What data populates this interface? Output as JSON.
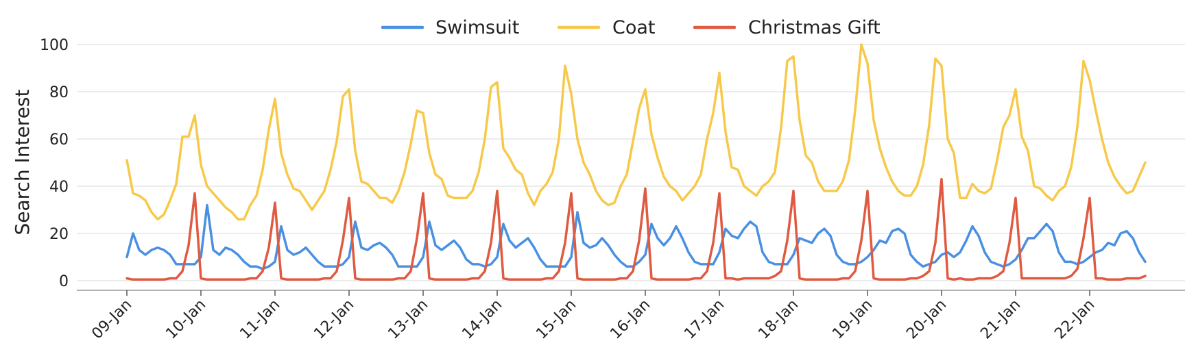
{
  "chart_data": {
    "type": "line",
    "title": "",
    "xlabel": "",
    "ylabel": "Search Interest",
    "ylim": [
      0,
      100
    ],
    "y_ticks": [
      0,
      20,
      40,
      60,
      80,
      100
    ],
    "x_tick_labels": [
      "09-Jan",
      "10-Jan",
      "11-Jan",
      "12-Jan",
      "13-Jan",
      "14-Jan",
      "15-Jan",
      "16-Jan",
      "17-Jan",
      "18-Jan",
      "19-Jan",
      "20-Jan",
      "21-Jan",
      "22-Jan"
    ],
    "points_per_day": 12,
    "grid": "horizontal",
    "legend_position": "top-center",
    "series": [
      {
        "name": "Swimsuit",
        "color": "#4a90e2",
        "values": [
          10,
          20,
          13,
          11,
          13,
          14,
          13,
          11,
          7,
          7,
          7,
          7,
          10,
          32,
          13,
          11,
          14,
          13,
          11,
          8,
          6,
          6,
          5,
          6,
          8,
          23,
          13,
          11,
          12,
          14,
          11,
          8,
          6,
          6,
          6,
          7,
          10,
          25,
          14,
          13,
          15,
          16,
          14,
          11,
          6,
          6,
          6,
          6,
          10,
          25,
          15,
          13,
          15,
          17,
          14,
          9,
          7,
          7,
          6,
          7,
          10,
          24,
          17,
          14,
          16,
          18,
          14,
          9,
          6,
          6,
          6,
          6,
          10,
          29,
          16,
          14,
          15,
          18,
          15,
          11,
          8,
          6,
          6,
          8,
          11,
          24,
          18,
          15,
          18,
          23,
          18,
          12,
          8,
          7,
          7,
          7,
          12,
          22,
          19,
          18,
          22,
          25,
          23,
          12,
          8,
          7,
          7,
          7,
          11,
          18,
          17,
          16,
          20,
          22,
          19,
          11,
          8,
          7,
          7,
          8,
          10,
          13,
          17,
          16,
          21,
          22,
          20,
          11,
          8,
          6,
          7,
          8,
          11,
          12,
          10,
          12,
          17,
          23,
          19,
          12,
          8,
          7,
          6,
          7,
          9,
          13,
          18,
          18,
          21,
          24,
          21,
          12,
          8,
          8,
          7,
          8,
          10,
          12,
          13,
          16,
          15,
          20,
          21,
          18,
          12,
          8
        ]
      },
      {
        "name": "Coat",
        "color": "#f7c94a",
        "values": [
          51,
          37,
          36,
          34,
          29,
          26,
          28,
          34,
          41,
          61,
          61,
          70,
          49,
          40,
          37,
          34,
          31,
          29,
          26,
          26,
          32,
          36,
          47,
          64,
          77,
          54,
          45,
          39,
          38,
          34,
          30,
          34,
          38,
          47,
          59,
          78,
          81,
          55,
          42,
          41,
          38,
          35,
          35,
          33,
          38,
          46,
          58,
          72,
          71,
          54,
          45,
          43,
          36,
          35,
          35,
          35,
          38,
          46,
          60,
          82,
          84,
          56,
          52,
          47,
          45,
          37,
          32,
          38,
          41,
          46,
          60,
          91,
          79,
          60,
          50,
          45,
          38,
          34,
          32,
          33,
          40,
          45,
          59,
          73,
          81,
          62,
          52,
          44,
          40,
          38,
          34,
          37,
          40,
          45,
          60,
          71,
          88,
          63,
          48,
          47,
          40,
          38,
          36,
          40,
          42,
          46,
          65,
          93,
          95,
          68,
          53,
          50,
          42,
          38,
          38,
          38,
          42,
          51,
          72,
          100,
          92,
          68,
          56,
          48,
          42,
          38,
          36,
          36,
          40,
          49,
          66,
          94,
          91,
          60,
          54,
          35,
          35,
          41,
          38,
          37,
          39,
          51,
          65,
          70,
          81,
          61,
          55,
          40,
          39,
          36,
          34,
          38,
          40,
          48,
          65,
          93,
          85,
          72,
          60,
          50,
          44,
          40,
          37,
          38,
          44,
          50
        ]
      },
      {
        "name": "Christmas Gift",
        "color": "#e05a41",
        "values": [
          1,
          0.5,
          0.5,
          0.5,
          0.5,
          0.5,
          0.5,
          1,
          1,
          4,
          15,
          37,
          1,
          0.5,
          0.5,
          0.5,
          0.5,
          0.5,
          0.5,
          0.5,
          1,
          1,
          4,
          14,
          33,
          1,
          0.5,
          0.5,
          0.5,
          0.5,
          0.5,
          0.5,
          1,
          1,
          4,
          17,
          35,
          1,
          0.5,
          0.5,
          0.5,
          0.5,
          0.5,
          0.5,
          1,
          1,
          4,
          18,
          37,
          1,
          0.5,
          0.5,
          0.5,
          0.5,
          0.5,
          0.5,
          1,
          1,
          4,
          16,
          38,
          1,
          0.5,
          0.5,
          0.5,
          0.5,
          0.5,
          0.5,
          1,
          1,
          4,
          16,
          37,
          1,
          0.5,
          0.5,
          0.5,
          0.5,
          0.5,
          0.5,
          1,
          1,
          4,
          17,
          39,
          1,
          0.5,
          0.5,
          0.5,
          0.5,
          0.5,
          0.5,
          1,
          1,
          4,
          16,
          37,
          1,
          1,
          0.5,
          1,
          1,
          1,
          1,
          1,
          2,
          4,
          17,
          38,
          1,
          0.5,
          0.5,
          0.5,
          0.5,
          0.5,
          0.5,
          1,
          1,
          4,
          17,
          38,
          1,
          0.5,
          0.5,
          0.5,
          0.5,
          0.5,
          1,
          1,
          2,
          4,
          16,
          43,
          1,
          0.5,
          1,
          0.5,
          0.5,
          1,
          1,
          1,
          2,
          4,
          16,
          35,
          1,
          1,
          1,
          1,
          1,
          1,
          1,
          1,
          2,
          5,
          18,
          35,
          1,
          1,
          0.5,
          0.5,
          0.5,
          1,
          1,
          1,
          2
        ]
      }
    ]
  }
}
